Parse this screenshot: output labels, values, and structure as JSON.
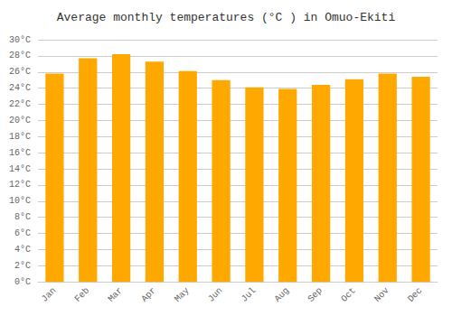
{
  "chart_data": {
    "type": "bar",
    "title": "Average monthly temperatures (°C ) in Omuo-Ekiti",
    "categories": [
      "Jan",
      "Feb",
      "Mar",
      "Apr",
      "May",
      "Jun",
      "Jul",
      "Aug",
      "Sep",
      "Oct",
      "Nov",
      "Dec"
    ],
    "values": [
      25.8,
      27.7,
      28.2,
      27.3,
      26.1,
      25.0,
      24.1,
      23.9,
      24.4,
      25.1,
      25.8,
      25.4
    ],
    "color": "#FFA800",
    "ylim": [
      0,
      30
    ],
    "yticks": [
      {
        "value": 0,
        "label": "0°C"
      },
      {
        "value": 2,
        "label": "2°C"
      },
      {
        "value": 4,
        "label": "4°C"
      },
      {
        "value": 6,
        "label": "6°C"
      },
      {
        "value": 8,
        "label": "8°C"
      },
      {
        "value": 10,
        "label": "10°C"
      },
      {
        "value": 12,
        "label": "12°C"
      },
      {
        "value": 14,
        "label": "14°C"
      },
      {
        "value": 16,
        "label": "16°C"
      },
      {
        "value": 18,
        "label": "18°C"
      },
      {
        "value": 20,
        "label": "20°C"
      },
      {
        "value": 22,
        "label": "22°C"
      },
      {
        "value": 24,
        "label": "24°C"
      },
      {
        "value": 26,
        "label": "26°C"
      },
      {
        "value": 28,
        "label": "28°C"
      },
      {
        "value": 30,
        "label": "30°C"
      }
    ],
    "grid": true
  }
}
